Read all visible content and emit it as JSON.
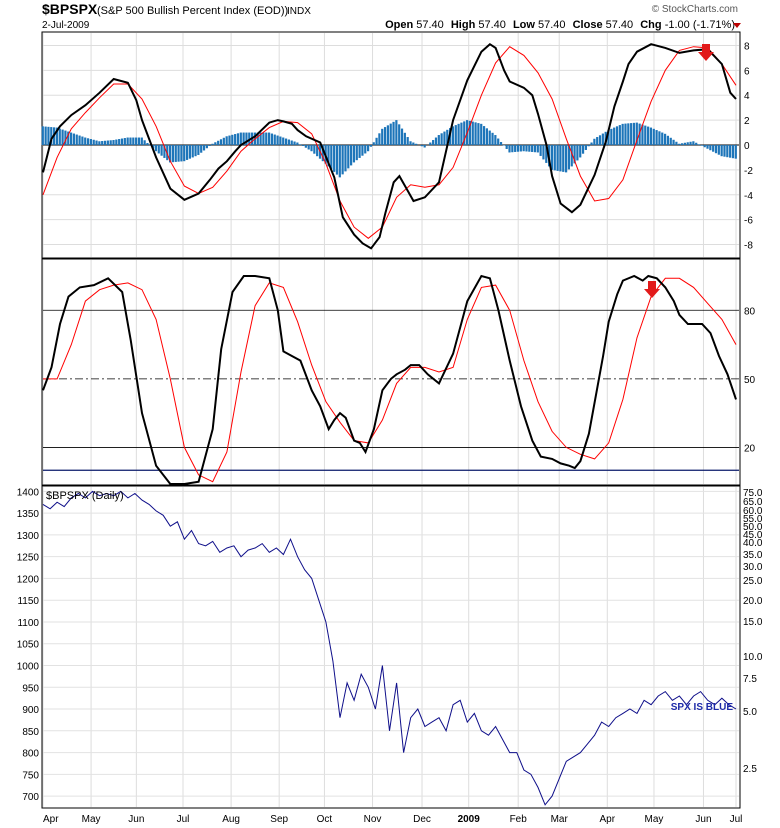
{
  "header": {
    "symbol": "$BPSPX",
    "description": "(S&P 500 Bullish Percent Index (EOD))",
    "exchange": "INDX",
    "date": "2-Jul-2009",
    "watermark": "© StockCharts.com",
    "open_label": "Open",
    "open": "57.40",
    "high_label": "High",
    "high": "57.40",
    "low_label": "Low",
    "low": "57.40",
    "close_label": "Close",
    "close": "57.40",
    "chg_label": "Chg",
    "chg": "-1.00 (-1.71%)"
  },
  "chart_data": [
    {
      "type": "line",
      "panel": "macd",
      "ylim": [
        -9,
        9
      ],
      "ticks": [
        8,
        6,
        4,
        2,
        0,
        -2,
        -4,
        -6,
        -8
      ],
      "series": [
        {
          "color": "#000000",
          "x": [
            0,
            6,
            12,
            20,
            30,
            40,
            50,
            60,
            66,
            70,
            80,
            90,
            100,
            110,
            118,
            124,
            130,
            136,
            140,
            150,
            160,
            166,
            170,
            176,
            180,
            186,
            196,
            206,
            212,
            220,
            226,
            232,
            238,
            242,
            248,
            252,
            256,
            262,
            270,
            280,
            290,
            300,
            310,
            316,
            320,
            326,
            330,
            340,
            346,
            350,
            356,
            360,
            366,
            374,
            380,
            390,
            398,
            404,
            410,
            414,
            420,
            430,
            440,
            450,
            460,
            470,
            480,
            486,
            490
          ],
          "values": [
            -2.2,
            0.5,
            1.5,
            2.4,
            3.2,
            4.2,
            5.3,
            5.0,
            3.6,
            2.0,
            -1.0,
            -3.5,
            -4.4,
            -3.9,
            -2.8,
            -1.9,
            -1.3,
            -0.5,
            0,
            0.7,
            1.8,
            2.0,
            1.9,
            1.7,
            1.2,
            0.7,
            0.2,
            -2.6,
            -5.8,
            -7.2,
            -7.9,
            -8.3,
            -7.4,
            -5.5,
            -3.0,
            -2.5,
            -3.3,
            -4.5,
            -4.2,
            -3.0,
            2.0,
            5.2,
            7.5,
            8.1,
            7.8,
            6.0,
            5.1,
            4.6,
            4.0,
            2.5,
            0,
            -2.5,
            -4.7,
            -5.4,
            -4.8,
            -2.4,
            0.3,
            3.1,
            5.1,
            6.5,
            7.5,
            8.1,
            7.8,
            7.4,
            7.6,
            7.7,
            6.5,
            4.2,
            3.7
          ]
        },
        {
          "color": "#ff0000",
          "x": [
            0,
            10,
            20,
            30,
            40,
            50,
            60,
            70,
            80,
            90,
            100,
            110,
            120,
            130,
            140,
            150,
            160,
            170,
            180,
            190,
            200,
            210,
            220,
            230,
            240,
            250,
            260,
            270,
            280,
            290,
            300,
            310,
            320,
            330,
            340,
            350,
            360,
            370,
            380,
            390,
            400,
            410,
            420,
            430,
            440,
            450,
            460,
            470,
            480,
            490
          ],
          "values": [
            -4.0,
            -1.0,
            1.3,
            2.6,
            3.8,
            4.9,
            4.9,
            3.7,
            1.5,
            -1.3,
            -3.3,
            -3.9,
            -3.4,
            -2.1,
            -0.5,
            0.5,
            1.4,
            1.9,
            1.8,
            0.9,
            -1.5,
            -4.5,
            -6.6,
            -7.5,
            -6.6,
            -4.2,
            -3.2,
            -3.4,
            -3.2,
            -1.8,
            1.0,
            4.0,
            6.6,
            7.9,
            7.2,
            5.8,
            3.7,
            0.5,
            -2.5,
            -4.5,
            -4.3,
            -2.8,
            0.4,
            3.5,
            6.0,
            7.6,
            7.9,
            7.8,
            6.5,
            4.8
          ]
        },
        {
          "type": "bar",
          "color": "#1d75b9",
          "x": [
            0,
            10,
            20,
            30,
            40,
            50,
            60,
            70,
            80,
            90,
            100,
            110,
            120,
            130,
            140,
            150,
            160,
            170,
            180,
            190,
            200,
            210,
            220,
            230,
            240,
            250,
            260,
            270,
            280,
            290,
            300,
            310,
            320,
            330,
            340,
            350,
            360,
            370,
            380,
            390,
            400,
            410,
            420,
            430,
            440,
            450,
            460,
            470,
            480,
            490
          ],
          "values": [
            1.5,
            1.4,
            1.0,
            0.6,
            0.3,
            0.4,
            0.6,
            0.6,
            -0.5,
            -1.4,
            -1.3,
            -0.8,
            0.1,
            0.7,
            1.0,
            1.0,
            1.0,
            0.6,
            0.2,
            -0.5,
            -1.5,
            -2.6,
            -1.4,
            -0.5,
            1.3,
            2.0,
            0.3,
            -0.2,
            0.8,
            1.5,
            2.0,
            1.7,
            0.8,
            -0.6,
            -0.5,
            -0.6,
            -2.0,
            -2.2,
            -1.0,
            0.5,
            1.2,
            1.7,
            1.8,
            1.4,
            0.9,
            0.1,
            0.3,
            -0.3,
            -0.9,
            -1.1
          ]
        }
      ]
    },
    {
      "type": "line",
      "panel": "stochastic",
      "ylim": [
        4,
        102
      ],
      "ticks": [
        80,
        50,
        20
      ],
      "series": [
        {
          "color": "#000000",
          "x": [
            0,
            6,
            12,
            18,
            26,
            36,
            46,
            56,
            62,
            70,
            80,
            90,
            100,
            110,
            120,
            126,
            134,
            142,
            150,
            160,
            166,
            170,
            176,
            182,
            190,
            196,
            202,
            206,
            210,
            214,
            220,
            224,
            228,
            234,
            240,
            246,
            250,
            256,
            260,
            266,
            272,
            280,
            290,
            300,
            310,
            316,
            322,
            330,
            338,
            346,
            352,
            360,
            366,
            372,
            376,
            380,
            386,
            396,
            400,
            406,
            410,
            418,
            424,
            428,
            434,
            440,
            446,
            450,
            456,
            460,
            466,
            472,
            478,
            484,
            490
          ],
          "values": [
            45,
            55,
            74,
            86,
            90,
            91,
            94,
            88,
            67,
            35,
            12,
            4,
            4,
            5,
            28,
            63,
            88,
            95,
            95,
            94,
            80,
            62,
            60,
            58,
            45,
            38,
            28,
            32,
            35,
            33,
            23,
            22,
            18,
            28,
            45,
            50,
            52,
            54,
            56,
            56,
            52,
            48,
            61,
            84,
            95,
            94,
            80,
            58,
            38,
            23,
            16,
            15,
            13,
            12,
            11,
            14,
            26,
            60,
            75,
            87,
            93,
            95,
            93,
            95,
            94,
            90,
            84,
            78,
            74,
            74,
            74,
            70,
            60,
            52,
            41
          ]
        },
        {
          "color": "#ff0000",
          "x": [
            0,
            10,
            20,
            30,
            40,
            50,
            60,
            70,
            80,
            90,
            100,
            110,
            120,
            130,
            140,
            150,
            160,
            170,
            180,
            190,
            200,
            210,
            220,
            230,
            240,
            250,
            260,
            270,
            280,
            290,
            300,
            310,
            320,
            330,
            340,
            350,
            360,
            370,
            380,
            390,
            400,
            410,
            420,
            430,
            440,
            450,
            460,
            470,
            480,
            490
          ],
          "values": [
            50,
            50,
            65,
            84,
            89,
            91,
            92,
            89,
            76,
            50,
            20,
            8,
            5,
            18,
            53,
            82,
            92,
            90,
            75,
            56,
            40,
            31,
            23,
            22,
            32,
            48,
            55,
            55,
            53,
            55,
            76,
            90,
            91,
            80,
            58,
            40,
            27,
            20,
            17,
            15,
            22,
            41,
            68,
            86,
            94,
            94,
            90,
            83,
            76,
            65
          ]
        }
      ]
    },
    {
      "type": "line",
      "panel": "price",
      "title": "$BPSPX (Daily)",
      "label": "SPX IS BLUE",
      "ylim": [
        675,
        1410
      ],
      "right_ticks": [
        "75.0",
        "65.0",
        "60.0",
        "55.0",
        "50.0",
        "45.0",
        "40.0",
        "35.0",
        "30.0",
        "25.0",
        "20.0",
        "15.0",
        "10.0",
        "7.5",
        "5.0",
        "2.5"
      ],
      "y_ticks": [
        1400,
        1350,
        1300,
        1250,
        1200,
        1150,
        1100,
        1050,
        1000,
        950,
        900,
        850,
        800,
        750,
        700
      ],
      "x_ticks": [
        "Apr",
        "May",
        "Jun",
        "Jul",
        "Aug",
        "Sep",
        "Oct",
        "Nov",
        "Dec",
        "2009",
        "Feb",
        "Mar",
        "Apr",
        "May",
        "Jun",
        "Jul"
      ],
      "series": [
        {
          "color": "#0f0f8a",
          "x": [
            0,
            5,
            10,
            15,
            20,
            25,
            30,
            35,
            40,
            45,
            50,
            55,
            60,
            65,
            70,
            75,
            80,
            85,
            90,
            95,
            100,
            105,
            110,
            115,
            120,
            125,
            130,
            135,
            140,
            145,
            150,
            155,
            160,
            165,
            170,
            175,
            180,
            185,
            190,
            195,
            200,
            205,
            210,
            215,
            220,
            225,
            230,
            235,
            240,
            245,
            250,
            255,
            260,
            265,
            270,
            275,
            280,
            285,
            290,
            295,
            300,
            305,
            310,
            315,
            320,
            325,
            330,
            335,
            340,
            345,
            350,
            355,
            360,
            365,
            370,
            375,
            380,
            385,
            390,
            395,
            400,
            405,
            410,
            415,
            420,
            425,
            430,
            435,
            440,
            445,
            450,
            455,
            460,
            465,
            470,
            475,
            480,
            485,
            490
          ],
          "values": [
            1370,
            1360,
            1375,
            1365,
            1385,
            1395,
            1385,
            1400,
            1390,
            1395,
            1390,
            1400,
            1385,
            1395,
            1380,
            1370,
            1355,
            1345,
            1320,
            1330,
            1290,
            1310,
            1280,
            1275,
            1285,
            1260,
            1270,
            1275,
            1250,
            1265,
            1270,
            1280,
            1260,
            1270,
            1255,
            1290,
            1250,
            1220,
            1200,
            1150,
            1100,
            1010,
            880,
            960,
            920,
            980,
            950,
            900,
            1000,
            850,
            960,
            800,
            880,
            900,
            860,
            870,
            880,
            850,
            910,
            920,
            870,
            890,
            850,
            840,
            860,
            830,
            800,
            800,
            760,
            750,
            720,
            680,
            700,
            740,
            780,
            790,
            800,
            820,
            840,
            870,
            860,
            880,
            890,
            900,
            890,
            920,
            910,
            930,
            940,
            920,
            930,
            910,
            930,
            940,
            920,
            910,
            925,
            910,
            900
          ]
        }
      ]
    }
  ]
}
